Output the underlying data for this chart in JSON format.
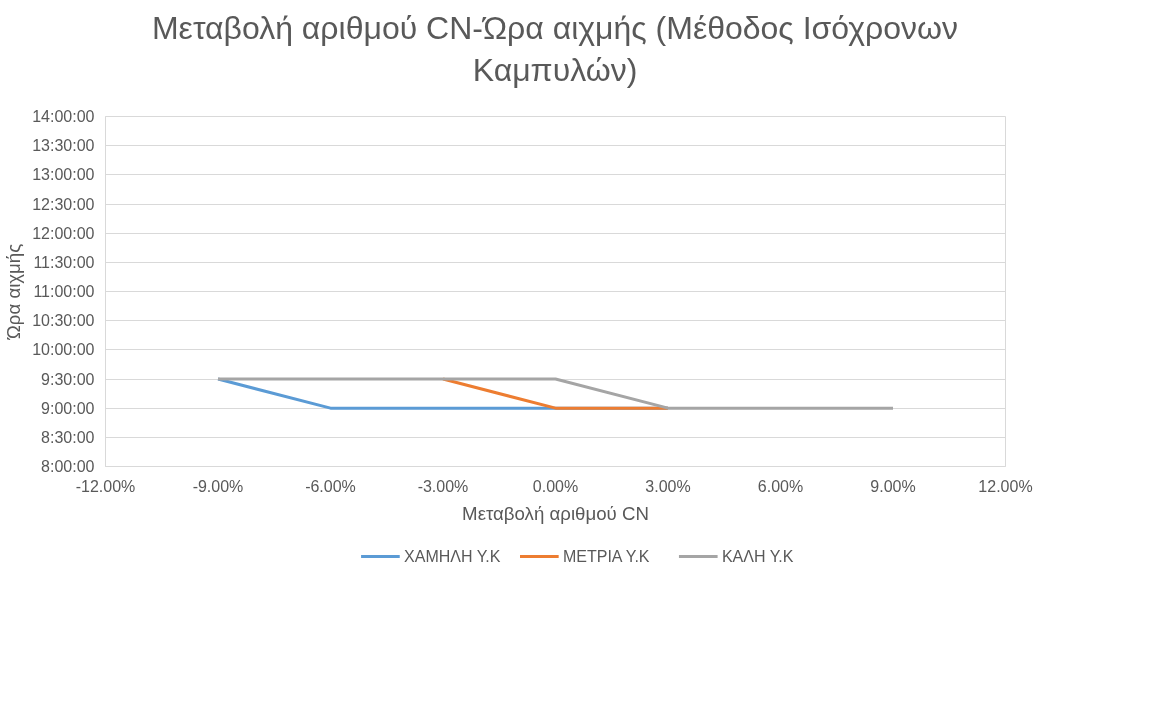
{
  "chart_data": {
    "type": "line",
    "title": "Μεταβολή αριθμού CN-Ώρα αιχμής (Μέθοδος Ισόχρονων\nΚαμπυλών)",
    "xlabel": "Μεταβολή αριθμού CN",
    "ylabel": "Ώρα αιχμής",
    "x": [
      -9,
      -6,
      -3,
      0,
      3,
      6,
      9
    ],
    "series": [
      {
        "name": "ΧΑΜΗΛΗ Υ.Κ",
        "color": "#5b9bd5",
        "values": [
          9.5,
          9,
          9,
          9,
          9,
          null,
          null
        ]
      },
      {
        "name": "ΜΕΤΡΙΑ Υ.Κ",
        "color": "#ed7d31",
        "values": [
          null,
          null,
          9.5,
          9,
          9,
          null,
          null
        ]
      },
      {
        "name": "ΚΑΛΗ Υ.Κ",
        "color": "#a5a5a5",
        "values": [
          9.5,
          9.5,
          9.5,
          9.5,
          9,
          9,
          9
        ]
      }
    ],
    "xlim": [
      -12,
      12
    ],
    "xticks": [
      {
        "value": -12,
        "label": "-12.00%"
      },
      {
        "value": -9,
        "label": "-9.00%"
      },
      {
        "value": -6,
        "label": "-6.00%"
      },
      {
        "value": -3,
        "label": "-3.00%"
      },
      {
        "value": 0,
        "label": "0.00%"
      },
      {
        "value": 3,
        "label": "3.00%"
      },
      {
        "value": 6,
        "label": "6.00%"
      },
      {
        "value": 9,
        "label": "9.00%"
      },
      {
        "value": 12,
        "label": "12.00%"
      }
    ],
    "ylim": [
      8,
      14
    ],
    "yticks": [
      {
        "value": 8,
        "label": "8:00:00"
      },
      {
        "value": 8.5,
        "label": "8:30:00"
      },
      {
        "value": 9,
        "label": "9:00:00"
      },
      {
        "value": 9.5,
        "label": "9:30:00"
      },
      {
        "value": 10,
        "label": "10:00:00"
      },
      {
        "value": 10.5,
        "label": "10:30:00"
      },
      {
        "value": 11,
        "label": "11:00:00"
      },
      {
        "value": 11.5,
        "label": "11:30:00"
      },
      {
        "value": 12,
        "label": "12:00:00"
      },
      {
        "value": 12.5,
        "label": "12:30:00"
      },
      {
        "value": 13,
        "label": "13:00:00"
      },
      {
        "value": 13.5,
        "label": "13:30:00"
      },
      {
        "value": 14,
        "label": "14:00:00"
      }
    ],
    "grid": "y",
    "legend": "bottom",
    "marker": "none",
    "line_style": "solid"
  }
}
